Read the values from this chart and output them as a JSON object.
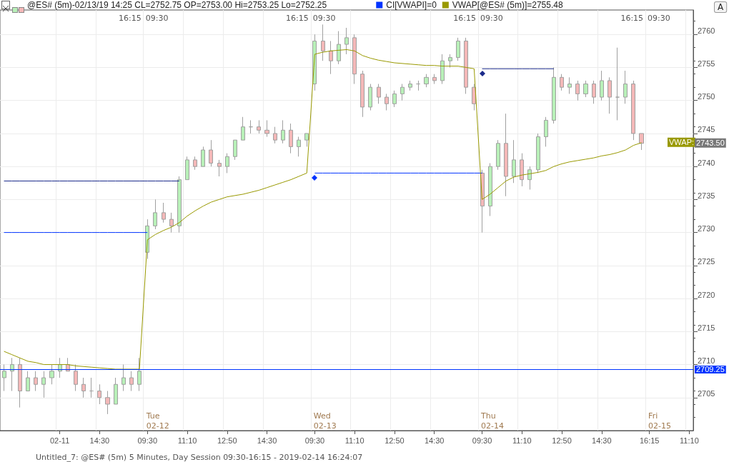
{
  "chart_data": {
    "type": "candlestick",
    "title": "@ES# (5m)-02/13/19 14:25 CL=2752.75 OP=2753.00 Hi=2753.25 Lo=2752.25",
    "categories": [
      null,
      null,
      null,
      null,
      null,
      null,
      null,
      "02-11",
      null,
      null,
      null,
      null,
      "14:30",
      null,
      null,
      null,
      null,
      null,
      "09:30",
      null,
      null,
      null,
      null,
      "11:10",
      null,
      null,
      null,
      null,
      "12:50",
      null,
      null,
      null,
      null,
      "14:30",
      null,
      null,
      null,
      null,
      null,
      "09:30",
      null,
      null,
      null,
      null,
      "11:10",
      null,
      null,
      null,
      null,
      "12:50",
      null,
      null,
      null,
      null,
      "14:30",
      null,
      null,
      null,
      null,
      null,
      "09:30",
      null,
      null,
      null,
      null,
      "11:10",
      null,
      null,
      null,
      null,
      "12:50",
      null,
      null,
      null,
      null,
      "14:30",
      null,
      null,
      null,
      null,
      null,
      "16:15",
      null,
      null,
      null,
      null,
      "11:10"
    ],
    "ohlc": [
      [
        2708,
        2710,
        2706,
        2709
      ],
      [
        2709,
        2711,
        2706,
        2710
      ],
      [
        2710,
        2711,
        2703.5,
        2706
      ],
      [
        2706,
        2709,
        2706,
        2708
      ],
      [
        2708,
        2709,
        2706,
        2707
      ],
      [
        2707,
        2709,
        2705,
        2708
      ],
      [
        2708,
        2710,
        2707,
        2709
      ],
      [
        2709,
        2711,
        2708,
        2710
      ],
      [
        2710,
        2711,
        2709,
        2709
      ],
      [
        2709,
        2710,
        2706,
        2707
      ],
      [
        2707,
        2708,
        2705,
        2706
      ],
      [
        2706,
        2708,
        2705,
        2706
      ],
      [
        2706,
        2707,
        2704,
        2705
      ],
      [
        2705,
        2706,
        2702.5,
        2704
      ],
      [
        2704,
        2708,
        2704,
        2707
      ],
      [
        2707,
        2710,
        2706,
        2708
      ],
      [
        2708,
        2709,
        2706,
        2707
      ],
      [
        2707,
        2711,
        2706,
        2709
      ],
      [
        2727,
        2732,
        2726,
        2731
      ],
      [
        2731,
        2735,
        2730.5,
        2733
      ],
      [
        2733,
        2734.5,
        2731.5,
        2732
      ],
      [
        2732,
        2733,
        2730,
        2731
      ],
      [
        2731,
        2738.5,
        2730,
        2738
      ],
      [
        2738,
        2741.5,
        2738,
        2741
      ],
      [
        2741,
        2741.5,
        2739.5,
        2740
      ],
      [
        2740,
        2743,
        2740,
        2742.5
      ],
      [
        2742.5,
        2744,
        2740,
        2740.5
      ],
      [
        2740.5,
        2741,
        2738.5,
        2740
      ],
      [
        2740,
        2742,
        2739,
        2741.5
      ],
      [
        2741.5,
        2744,
        2741,
        2744
      ],
      [
        2744,
        2747.5,
        2744,
        2746
      ],
      [
        2746,
        2747,
        2745,
        2746
      ],
      [
        2746,
        2747,
        2745,
        2745.5
      ],
      [
        2745.5,
        2747,
        2744.5,
        2745
      ],
      [
        2745,
        2746,
        2743.5,
        2744
      ],
      [
        2744,
        2747,
        2743.5,
        2745.5
      ],
      [
        2745.5,
        2746.5,
        2742,
        2743
      ],
      [
        2743,
        2744.5,
        2741.5,
        2744
      ],
      [
        2744,
        2745,
        2743,
        2745
      ],
      [
        2752.5,
        2760,
        2751.5,
        2759
      ],
      [
        2759,
        2761.5,
        2756,
        2757.5
      ],
      [
        2757.5,
        2759,
        2754,
        2756
      ],
      [
        2756,
        2760.5,
        2755.5,
        2758.5
      ],
      [
        2758.5,
        2761,
        2757,
        2759.5
      ],
      [
        2759.5,
        2760,
        2752.5,
        2754
      ],
      [
        2754,
        2754.5,
        2747.5,
        2749
      ],
      [
        2749,
        2752.5,
        2748.5,
        2752
      ],
      [
        2752,
        2752.5,
        2749.5,
        2750.5
      ],
      [
        2750.5,
        2751,
        2748.5,
        2749.5
      ],
      [
        2749.5,
        2751.5,
        2749,
        2751
      ],
      [
        2751,
        2752.5,
        2750,
        2752
      ],
      [
        2752,
        2753,
        2751.5,
        2752.5
      ],
      [
        2752.5,
        2753,
        2751.5,
        2752.5
      ],
      [
        2752.5,
        2754,
        2752,
        2753.5
      ],
      [
        2753.5,
        2754,
        2752.5,
        2753
      ],
      [
        2753,
        2757,
        2752.5,
        2756
      ],
      [
        2756,
        2757,
        2755,
        2756.5
      ],
      [
        2756.5,
        2759.5,
        2756,
        2759
      ],
      [
        2759,
        2759.5,
        2751,
        2752
      ],
      [
        2752,
        2752.5,
        2748.5,
        2749.5
      ],
      [
        2739,
        2739.5,
        2730,
        2734
      ],
      [
        2734,
        2740.5,
        2732.5,
        2740
      ],
      [
        2740,
        2744,
        2739.5,
        2743.5
      ],
      [
        2743.5,
        2748,
        2735.5,
        2738.5
      ],
      [
        2738.5,
        2744,
        2737.5,
        2741
      ],
      [
        2741,
        2742,
        2737,
        2738
      ],
      [
        2738,
        2740,
        2736.5,
        2739.5
      ],
      [
        2739.5,
        2745,
        2739,
        2744.5
      ],
      [
        2744.5,
        2747.5,
        2743,
        2747
      ],
      [
        2747,
        2755,
        2746.5,
        2753.5
      ],
      [
        2753.5,
        2754,
        2751.5,
        2752
      ],
      [
        2752,
        2753.5,
        2751,
        2752.5
      ],
      [
        2752.5,
        2753,
        2750,
        2751
      ],
      [
        2751,
        2753,
        2750.5,
        2752.5
      ],
      [
        2752.5,
        2753,
        2749.5,
        2750.5
      ],
      [
        2750.5,
        2754.5,
        2750,
        2753
      ],
      [
        2753,
        2753.5,
        2748,
        2750.5
      ],
      [
        2750.5,
        2758,
        2747,
        2750.5
      ],
      [
        2750.5,
        2754.5,
        2749.5,
        2752.5
      ],
      [
        2752.5,
        2753,
        2744,
        2745
      ],
      [
        2745,
        2745,
        2742.5,
        2743.5
      ],
      null,
      null,
      null,
      null,
      null,
      null
    ],
    "series": [
      {
        "type": "line",
        "name": "CI[VWAPI]=0",
        "color": "#0033ff",
        "values": [
          2730,
          2730,
          2730,
          2730,
          2730,
          2730,
          2730,
          2730,
          2730,
          2730,
          2730,
          2730,
          2730,
          2730,
          2730,
          2730,
          2730,
          2730,
          2730,
          null,
          null,
          null,
          null,
          null,
          null,
          null,
          null,
          null,
          null,
          null,
          null,
          null,
          null,
          null,
          null,
          null,
          null,
          null,
          null,
          2739,
          2739,
          2739,
          2739,
          2739,
          2739,
          2739,
          2739,
          2739,
          2739,
          2739,
          2739,
          2739,
          2739,
          2739,
          2739,
          2739,
          2739,
          2739,
          2739,
          2739,
          2739,
          null,
          null,
          null,
          null,
          null,
          null,
          null,
          null,
          null,
          null,
          null,
          null,
          null,
          null,
          null,
          null,
          null,
          null,
          null,
          null,
          null,
          null,
          null,
          null,
          null,
          null
        ]
      },
      {
        "type": "line",
        "color": "#1a2a8a",
        "values": [
          2737.8,
          2737.8,
          2737.8,
          2737.8,
          2737.8,
          2737.8,
          2737.8,
          2737.8,
          2737.8,
          2737.8,
          2737.8,
          2737.8,
          2737.8,
          2737.8,
          2737.8,
          2737.8,
          2737.8,
          2737.8,
          2737.8,
          2737.8,
          2737.8,
          2737.8,
          2737.8,
          null,
          null,
          null,
          null,
          null,
          null,
          null,
          null,
          null,
          null,
          null,
          null,
          null,
          null,
          null,
          null,
          null,
          null,
          null,
          null,
          null,
          null,
          null,
          null,
          null,
          null,
          null,
          null,
          null,
          null,
          null,
          null,
          null,
          null,
          null,
          null,
          null,
          2754.8,
          2754.8,
          2754.8,
          2754.8,
          2754.8,
          2754.8,
          2754.8,
          2754.8,
          2754.8,
          2754.8,
          null,
          null,
          null,
          null,
          null,
          null,
          null,
          null,
          null,
          null,
          null,
          null,
          null,
          null,
          null,
          null,
          null
        ]
      },
      {
        "type": "line",
        "name": "VWAP[@ES# (5m)]=2755.48",
        "color": "#999900",
        "values": [
          2712,
          2711.5,
          2711,
          2710.5,
          2710.3,
          2710,
          2710,
          2710,
          2710,
          2709.8,
          2709.7,
          2709.6,
          2709.5,
          2709.4,
          2709.3,
          2709.3,
          2709.3,
          2709.3,
          2728.9,
          2729.7,
          2730.3,
          2730.8,
          2731.5,
          2732.5,
          2733.3,
          2734,
          2734.6,
          2735,
          2735.4,
          2735.6,
          2735.8,
          2736.1,
          2736.4,
          2736.8,
          2737.2,
          2737.6,
          2738,
          2738.5,
          2739,
          2757,
          2757.3,
          2757.5,
          2757.6,
          2757.7,
          2757.5,
          2756.8,
          2756.4,
          2756.1,
          2755.9,
          2755.7,
          2755.6,
          2755.5,
          2755.4,
          2755.3,
          2755.3,
          2755.2,
          2755.2,
          2755.2,
          2755,
          2754.8,
          2735,
          2735.8,
          2736.8,
          2737.8,
          2738.4,
          2738.7,
          2738.9,
          2739.1,
          2739.4,
          2740,
          2740.4,
          2740.7,
          2740.9,
          2741.1,
          2741.3,
          2741.6,
          2741.8,
          2742.1,
          2742.5,
          2743.2,
          2743.6,
          null,
          null,
          null,
          null,
          null,
          null
        ]
      }
    ],
    "ylim": [
      2700,
      2763.7
    ],
    "yticks": [
      2705,
      2710,
      2715,
      2720,
      2725,
      2730,
      2735,
      2740,
      2745,
      2750,
      2755,
      2760
    ],
    "grid": true,
    "legend": "top right",
    "line_style": "solid",
    "ref_lines": [
      {
        "axis": "y",
        "value": 2709.25,
        "label": "2709.25",
        "color": "#0033ff"
      }
    ],
    "annotations": [
      "16:15",
      "09:30",
      "16:15",
      "09:30",
      "16:15",
      "09:30",
      "16:15",
      "09:30",
      "Tue\n02-12",
      "Wed\n02-13",
      "Thu\n02-14",
      "Fri\n02-15",
      "VWAP:",
      "2743.50",
      "A",
      "Untitled_7: @ES# (5m) 5 Minutes, Day Session 09:30-16:15 - 2019-02-14 16:24:07"
    ]
  }
}
